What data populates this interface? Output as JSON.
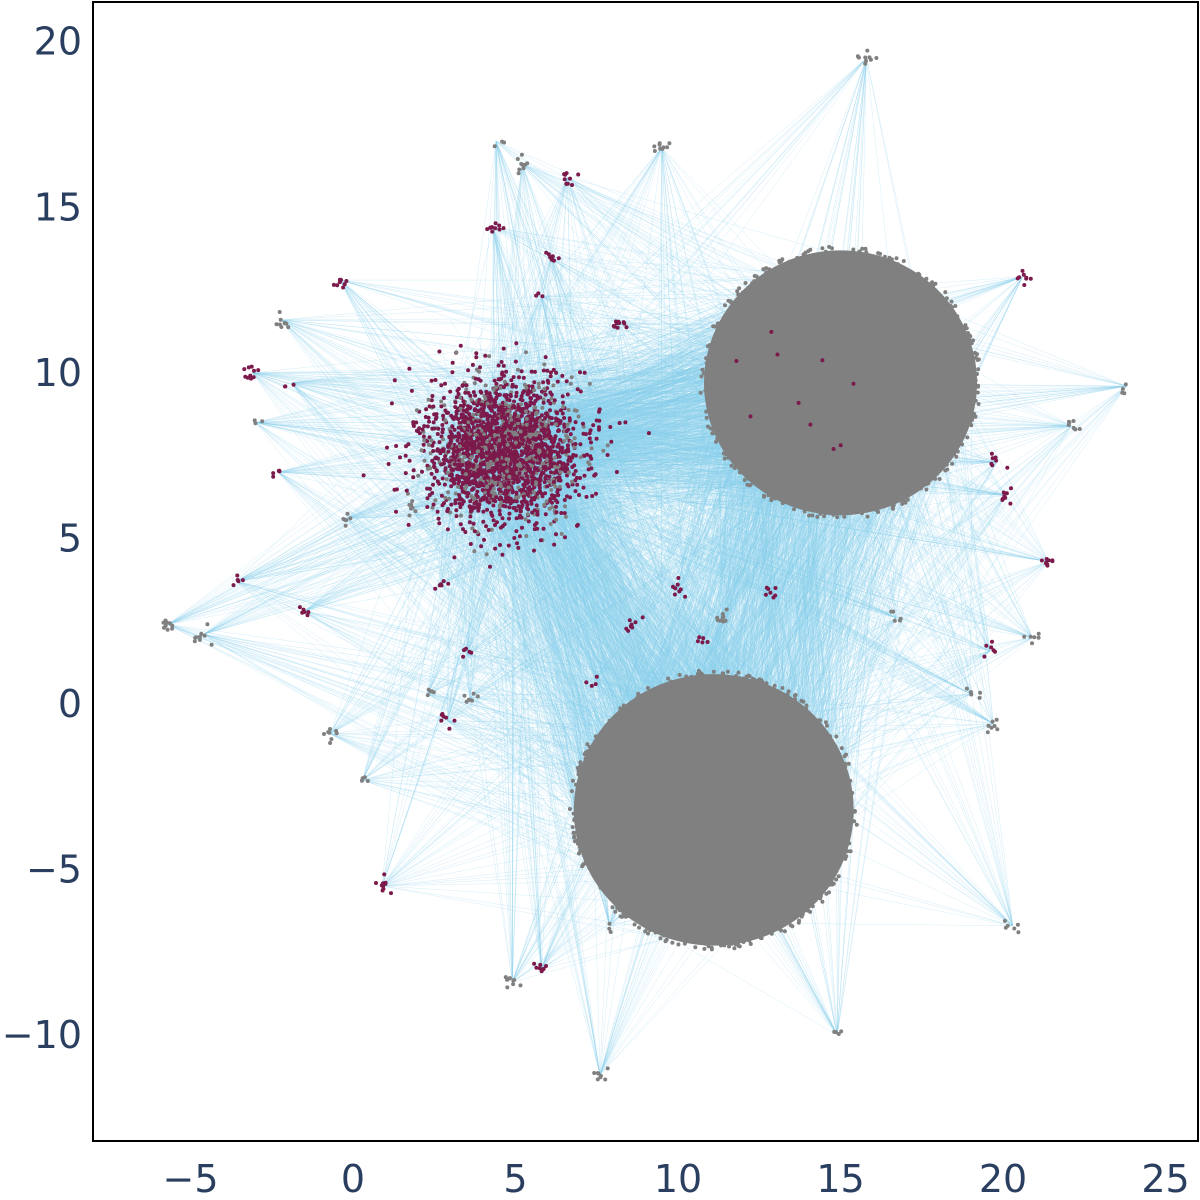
{
  "chart_data": {
    "type": "scatter",
    "title": "",
    "xlabel": "",
    "ylabel": "",
    "xlim": [
      -8,
      26
    ],
    "ylim": [
      -13.2,
      21.2
    ],
    "grid": false,
    "legend": "none",
    "x_ticks": [
      {
        "value": -5,
        "label": "−5"
      },
      {
        "value": 0,
        "label": "0"
      },
      {
        "value": 5,
        "label": "5"
      },
      {
        "value": 10,
        "label": "10"
      },
      {
        "value": 15,
        "label": "15"
      },
      {
        "value": 20,
        "label": "20"
      },
      {
        "value": 25,
        "label": "25"
      }
    ],
    "y_ticks": [
      {
        "value": -10,
        "label": "−10"
      },
      {
        "value": -5,
        "label": "−5"
      },
      {
        "value": 0,
        "label": "0"
      },
      {
        "value": 5,
        "label": "5"
      },
      {
        "value": 10,
        "label": "10"
      },
      {
        "value": 15,
        "label": "15"
      },
      {
        "value": 20,
        "label": "20"
      }
    ],
    "colors": {
      "edges": "#87ceeb",
      "node_gray": "#808080",
      "node_maroon": "#7b1a4b",
      "tick_text": "#2a3f5f"
    },
    "clusters": [
      {
        "color": "gray",
        "center": [
          15.0,
          9.7
        ],
        "radius": 4.0,
        "label": "upper-right gray cluster"
      },
      {
        "color": "gray",
        "center": [
          11.1,
          -3.2
        ],
        "radius": 4.1,
        "label": "lower gray cluster"
      },
      {
        "color": "maroon",
        "center": [
          4.6,
          7.7
        ],
        "spread": [
          2.6,
          2.3
        ],
        "label": "central maroon cluster"
      }
    ],
    "hub_nodes": [
      {
        "x": -5.7,
        "y": 2.4,
        "color": "gray"
      },
      {
        "x": -4.6,
        "y": 2.1,
        "color": "gray"
      },
      {
        "x": -3.1,
        "y": 10.0,
        "color": "maroon"
      },
      {
        "x": -3.0,
        "y": 8.5,
        "color": "gray"
      },
      {
        "x": -2.3,
        "y": 7.0,
        "color": "maroon"
      },
      {
        "x": -2.2,
        "y": 11.6,
        "color": "gray"
      },
      {
        "x": -1.9,
        "y": 9.7,
        "color": "maroon"
      },
      {
        "x": -1.5,
        "y": 2.8,
        "color": "maroon"
      },
      {
        "x": -0.7,
        "y": -0.9,
        "color": "gray"
      },
      {
        "x": -0.4,
        "y": 12.8,
        "color": "maroon"
      },
      {
        "x": 0.3,
        "y": -2.3,
        "color": "gray"
      },
      {
        "x": 0.9,
        "y": -5.5,
        "color": "maroon"
      },
      {
        "x": 1.8,
        "y": 5.9,
        "color": "gray"
      },
      {
        "x": 2.3,
        "y": 0.3,
        "color": "gray"
      },
      {
        "x": 2.9,
        "y": -0.5,
        "color": "maroon"
      },
      {
        "x": 3.6,
        "y": 0.2,
        "color": "gray"
      },
      {
        "x": 4.4,
        "y": 17.0,
        "color": "gray"
      },
      {
        "x": 4.3,
        "y": 14.4,
        "color": "maroon"
      },
      {
        "x": 5.2,
        "y": 16.3,
        "color": "gray"
      },
      {
        "x": 4.9,
        "y": -8.4,
        "color": "gray"
      },
      {
        "x": 5.8,
        "y": -8.0,
        "color": "maroon"
      },
      {
        "x": 6.6,
        "y": 15.9,
        "color": "maroon"
      },
      {
        "x": 7.6,
        "y": -11.2,
        "color": "gray"
      },
      {
        "x": 7.9,
        "y": -6.7,
        "color": "gray"
      },
      {
        "x": 9.5,
        "y": 16.8,
        "color": "gray"
      },
      {
        "x": 15.8,
        "y": 19.5,
        "color": "gray"
      },
      {
        "x": 14.9,
        "y": -10.0,
        "color": "gray"
      },
      {
        "x": 20.6,
        "y": 12.9,
        "color": "maroon"
      },
      {
        "x": 22.1,
        "y": 8.4,
        "color": "gray"
      },
      {
        "x": 21.4,
        "y": 4.3,
        "color": "maroon"
      },
      {
        "x": 23.8,
        "y": 9.6,
        "color": "gray"
      },
      {
        "x": 19.8,
        "y": 7.3,
        "color": "maroon"
      },
      {
        "x": 20.1,
        "y": 6.3,
        "color": "maroon"
      },
      {
        "x": 19.6,
        "y": 1.6,
        "color": "maroon"
      },
      {
        "x": 20.9,
        "y": 2.0,
        "color": "gray"
      },
      {
        "x": 19.0,
        "y": 0.3,
        "color": "gray"
      },
      {
        "x": 19.7,
        "y": -0.6,
        "color": "gray"
      },
      {
        "x": 20.3,
        "y": -6.7,
        "color": "gray"
      },
      {
        "x": 16.7,
        "y": 2.6,
        "color": "gray"
      },
      {
        "x": 12.9,
        "y": 3.3,
        "color": "maroon"
      },
      {
        "x": 10.8,
        "y": 2.0,
        "color": "maroon"
      },
      {
        "x": 11.4,
        "y": 2.6,
        "color": "gray"
      },
      {
        "x": 8.6,
        "y": 2.4,
        "color": "maroon"
      },
      {
        "x": 7.5,
        "y": 0.8,
        "color": "maroon"
      },
      {
        "x": 10.0,
        "y": 3.5,
        "color": "maroon"
      },
      {
        "x": 8.2,
        "y": 11.5,
        "color": "maroon"
      },
      {
        "x": 6.1,
        "y": 13.5,
        "color": "maroon"
      },
      {
        "x": 5.8,
        "y": 12.3,
        "color": "maroon"
      },
      {
        "x": 2.7,
        "y": 3.6,
        "color": "maroon"
      },
      {
        "x": 3.5,
        "y": 1.5,
        "color": "maroon"
      },
      {
        "x": -0.2,
        "y": 5.6,
        "color": "gray"
      },
      {
        "x": -3.6,
        "y": 3.7,
        "color": "maroon"
      },
      {
        "x": 7.1,
        "y": -2.0,
        "color": "gray"
      },
      {
        "x": 6.9,
        "y": -3.5,
        "color": "gray"
      }
    ]
  }
}
